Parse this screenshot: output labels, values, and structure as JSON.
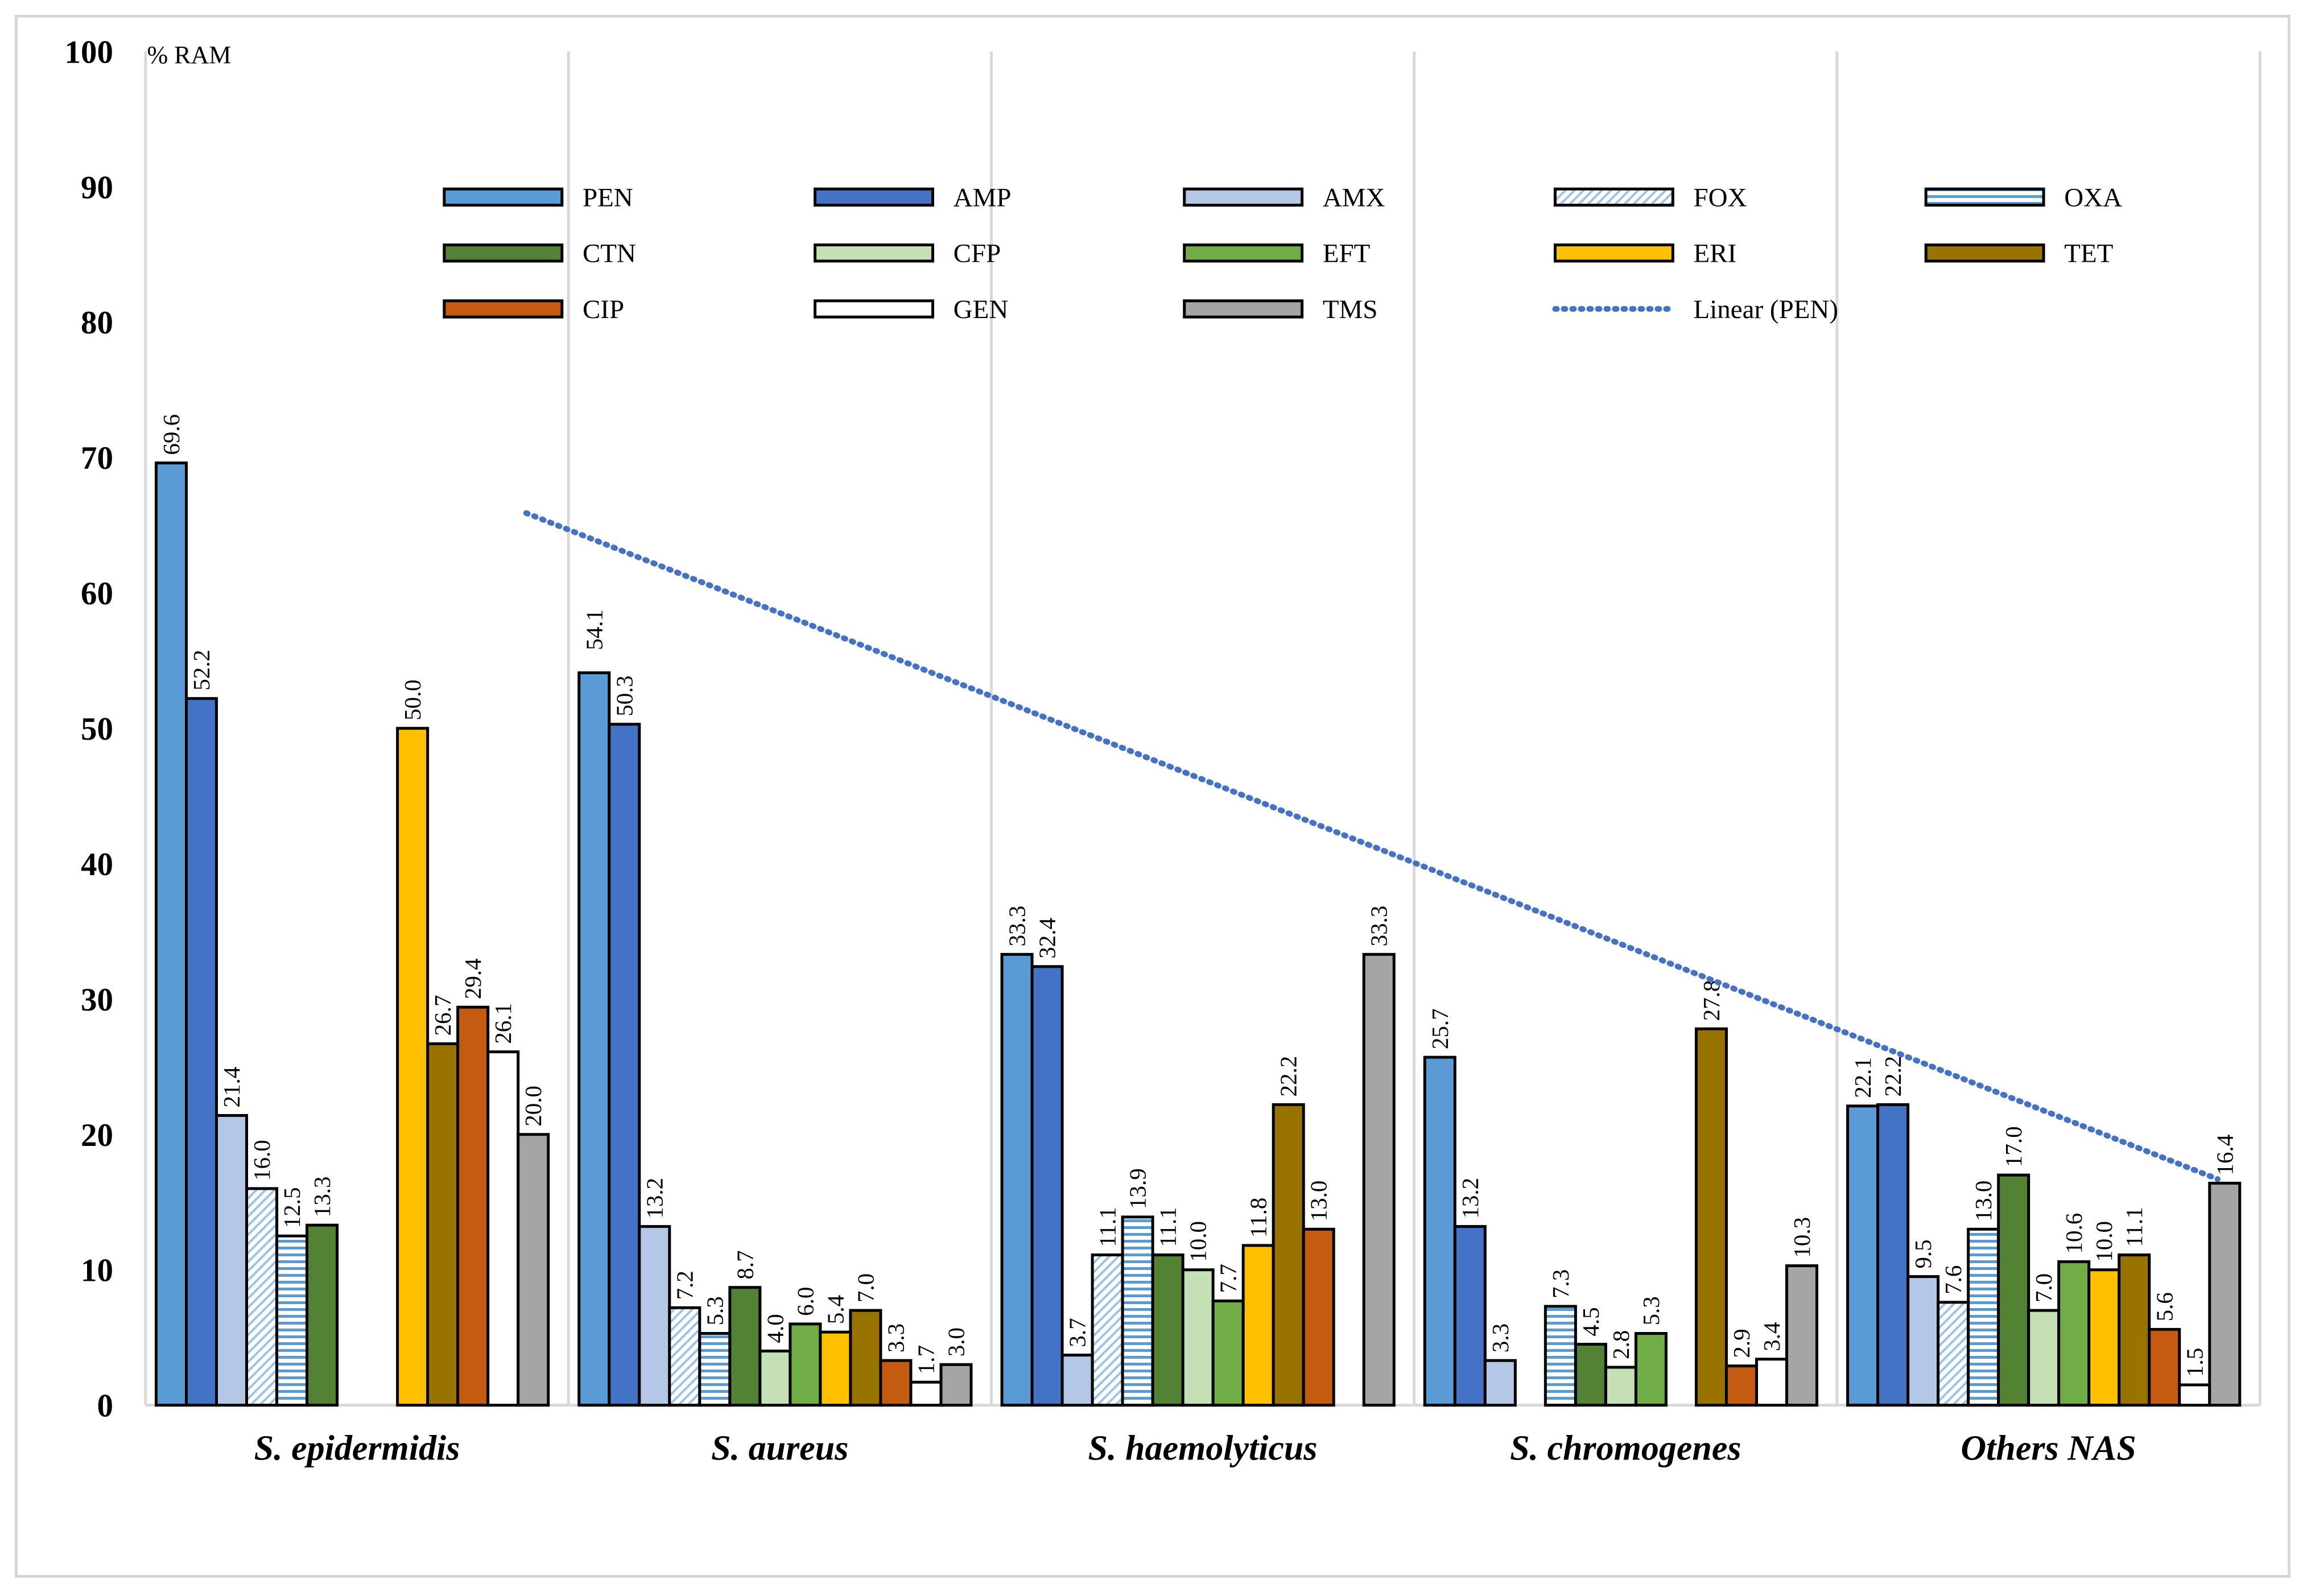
{
  "chart_data": {
    "type": "bar",
    "ylabel": "% RAM",
    "ylim": [
      0,
      100
    ],
    "yticks": [
      0,
      10,
      20,
      30,
      40,
      50,
      60,
      70,
      80,
      90,
      100
    ],
    "grid": "vertical separators between categories",
    "legend_position": "top",
    "categories": [
      "S. epidermidis",
      "S. aureus",
      "S. haemolyticus",
      "S. chromogenes",
      "Others NAS"
    ],
    "series": [
      {
        "name": "PEN",
        "color": "#5b9bd5",
        "pattern": "solid",
        "values": [
          69.6,
          54.1,
          33.3,
          25.7,
          22.1
        ],
        "label_offsets": [
          0,
          -10,
          0,
          0,
          0
        ]
      },
      {
        "name": "AMP",
        "color": "#4472c4",
        "pattern": "solid",
        "values": [
          52.2,
          50.3,
          32.4,
          13.2,
          22.2
        ],
        "label_offsets": [
          0,
          0,
          0,
          0,
          0
        ]
      },
      {
        "name": "AMX",
        "color": "#b4c7e7",
        "pattern": "solid",
        "values": [
          21.4,
          13.2,
          3.7,
          3.3,
          9.5
        ],
        "label_offsets": [
          0,
          0,
          0,
          0,
          0
        ]
      },
      {
        "name": "FOX",
        "color": "#9dc3e6",
        "pattern": "diagonal",
        "values": [
          16.0,
          7.2,
          11.1,
          0.0,
          7.6
        ],
        "label_offsets": [
          0,
          0,
          0,
          0,
          0
        ]
      },
      {
        "name": "OXA",
        "color": "#5b9bd5",
        "pattern": "horizontal",
        "values": [
          12.5,
          5.3,
          13.9,
          7.3,
          13.0
        ],
        "label_offsets": [
          0,
          0,
          0,
          0,
          0
        ]
      },
      {
        "name": "CTN",
        "color": "#548235",
        "pattern": "solid",
        "values": [
          13.3,
          8.7,
          11.1,
          4.5,
          17.0
        ],
        "label_offsets": [
          0,
          0,
          0,
          0,
          0
        ]
      },
      {
        "name": "CFP",
        "color": "#c5e0b4",
        "pattern": "solid",
        "values": [
          0.0,
          4.0,
          10.0,
          2.8,
          7.0
        ],
        "label_offsets": [
          0,
          0,
          0,
          0,
          0
        ]
      },
      {
        "name": "EFT",
        "color": "#70ad47",
        "pattern": "solid",
        "values": [
          0.0,
          6.0,
          7.7,
          5.3,
          10.6
        ],
        "label_offsets": [
          0,
          0,
          0,
          0,
          0
        ]
      },
      {
        "name": "ERI",
        "color": "#ffc000",
        "pattern": "solid",
        "values": [
          50.0,
          5.4,
          11.8,
          0.0,
          10.0
        ],
        "label_offsets": [
          0,
          0,
          0,
          0,
          0
        ]
      },
      {
        "name": "TET",
        "color": "#997300",
        "pattern": "solid",
        "values": [
          26.7,
          7.0,
          22.2,
          27.8,
          11.1
        ],
        "label_offsets": [
          0,
          0,
          0,
          0,
          0
        ]
      },
      {
        "name": "CIP",
        "color": "#c55a11",
        "pattern": "solid",
        "values": [
          29.4,
          3.3,
          13.0,
          2.9,
          5.6
        ],
        "label_offsets": [
          0,
          0,
          0,
          0,
          0
        ]
      },
      {
        "name": "GEN",
        "color": "#ffffff",
        "pattern": "solid",
        "values": [
          26.1,
          1.7,
          0.0,
          3.4,
          1.5
        ],
        "label_offsets": [
          0,
          0,
          0,
          0,
          0
        ]
      },
      {
        "name": "TMS",
        "color": "#a5a5a5",
        "pattern": "solid",
        "values": [
          20.0,
          3.0,
          33.3,
          10.3,
          16.4
        ],
        "label_offsets": [
          0,
          0,
          0,
          0,
          0
        ]
      }
    ],
    "visible_bar_slots": [
      [
        true,
        true,
        true,
        true,
        true,
        true,
        false,
        false,
        true,
        true,
        true,
        true,
        true
      ],
      [
        true,
        true,
        true,
        true,
        true,
        true,
        true,
        true,
        true,
        true,
        true,
        true,
        true
      ],
      [
        true,
        true,
        true,
        true,
        true,
        true,
        true,
        true,
        true,
        true,
        true,
        false,
        true
      ],
      [
        true,
        true,
        true,
        false,
        true,
        true,
        true,
        true,
        false,
        true,
        true,
        true,
        true
      ],
      [
        true,
        true,
        true,
        true,
        true,
        true,
        true,
        true,
        true,
        true,
        true,
        true,
        true
      ]
    ],
    "omitted_zero_labels": [
      [
        false,
        false,
        false,
        false,
        false,
        false,
        true,
        true,
        false,
        false,
        false,
        false,
        false
      ],
      [
        false,
        false,
        false,
        false,
        false,
        false,
        false,
        false,
        false,
        false,
        false,
        false,
        false
      ],
      [
        false,
        false,
        false,
        false,
        false,
        false,
        false,
        false,
        false,
        false,
        false,
        true,
        false
      ],
      [
        false,
        false,
        false,
        true,
        false,
        false,
        false,
        false,
        true,
        false,
        false,
        false,
        false
      ],
      [
        false,
        false,
        false,
        false,
        false,
        false,
        false,
        false,
        false,
        false,
        false,
        false,
        false
      ]
    ],
    "trendline": {
      "name": "Linear (PEN)",
      "color": "#4472c4",
      "style": "dotted",
      "start": {
        "category_index": 0.45,
        "value": 65.9
      },
      "end": {
        "category_index": 4.45,
        "value": 16.7
      }
    }
  }
}
